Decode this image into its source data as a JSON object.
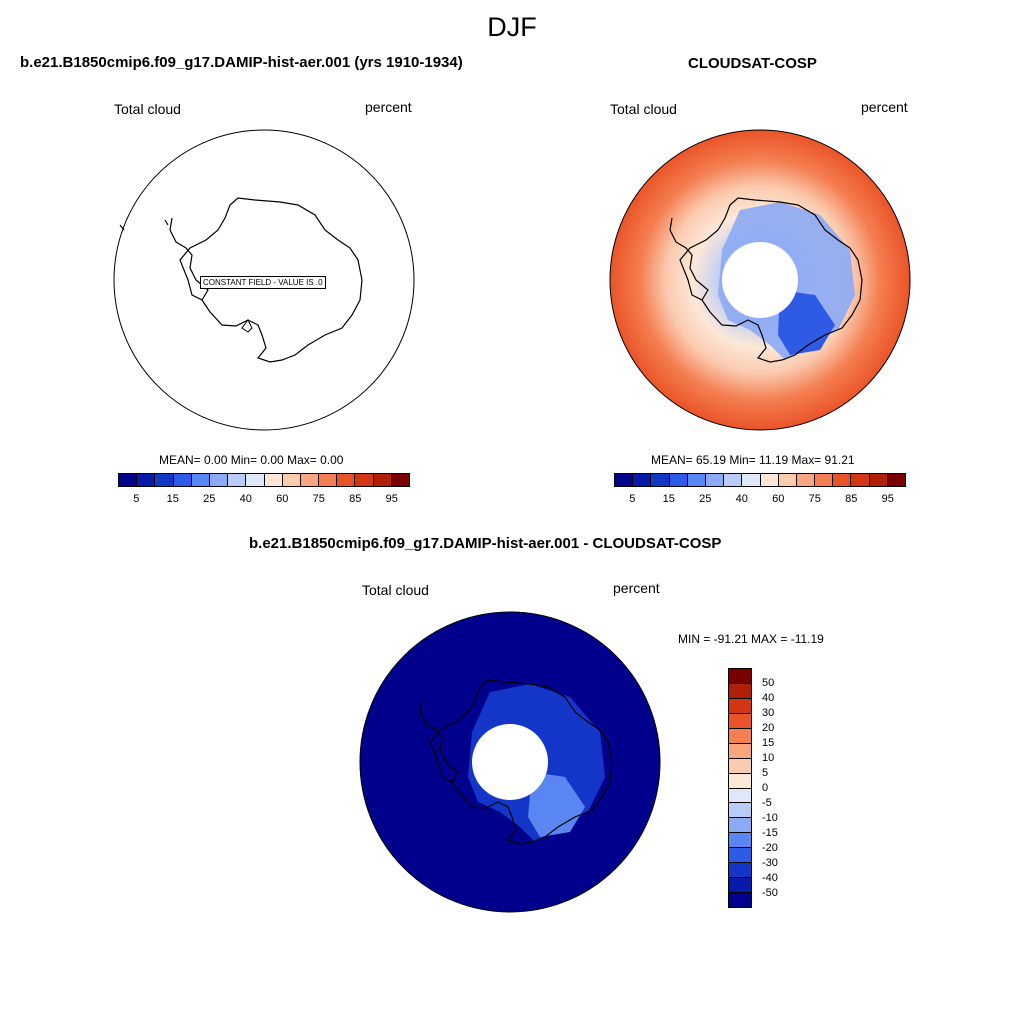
{
  "title": "DJF",
  "panels": [
    {
      "title": "b.e21.B1850cmip6.f09_g17.DAMIP-hist-aer.001 (yrs 1910-1934)",
      "left_label": "Total cloud",
      "right_label": "percent",
      "notice": "CONSTANT FIELD - VALUE IS .0",
      "stats": "MEAN=   0.00  Min=   0.00  Max=   0.00"
    },
    {
      "title": "CLOUDSAT-COSP",
      "left_label": "Total cloud",
      "right_label": "percent",
      "stats": "MEAN=  65.19  Min=  11.19  Max=  91.21"
    },
    {
      "title": "b.e21.B1850cmip6.f09_g17.DAMIP-hist-aer.001 - CLOUDSAT-COSP",
      "left_label": "Total cloud",
      "right_label": "percent",
      "minmax": "MIN = -91.21  MAX = -11.19"
    }
  ],
  "chart_data": [
    {
      "type": "heatmap",
      "projection": "south-polar-stereographic",
      "title": "b.e21.B1850cmip6.f09_g17.DAMIP-hist-aer.001 (yrs 1910-1934)",
      "variable": "Total cloud",
      "units": "percent",
      "mean": 0.0,
      "min": 0.0,
      "max": 0.0,
      "colorbar_levels": [
        5,
        10,
        15,
        20,
        25,
        30,
        40,
        50,
        60,
        65,
        75,
        80,
        85,
        90,
        95
      ],
      "colorbar_tick_labels": [
        "5",
        "15",
        "25",
        "40",
        "60",
        "75",
        "85",
        "95"
      ]
    },
    {
      "type": "heatmap",
      "projection": "south-polar-stereographic",
      "title": "CLOUDSAT-COSP",
      "variable": "Total cloud",
      "units": "percent",
      "mean": 65.19,
      "min": 11.19,
      "max": 91.21,
      "colorbar_levels": [
        5,
        10,
        15,
        20,
        25,
        30,
        40,
        50,
        60,
        65,
        75,
        80,
        85,
        90,
        95
      ],
      "colorbar_tick_labels": [
        "5",
        "15",
        "25",
        "40",
        "60",
        "75",
        "85",
        "95"
      ]
    },
    {
      "type": "heatmap",
      "projection": "south-polar-stereographic",
      "title": "b.e21.B1850cmip6.f09_g17.DAMIP-hist-aer.001 - CLOUDSAT-COSP",
      "variable": "Total cloud",
      "units": "percent",
      "min": -91.21,
      "max": -11.19,
      "colorbar_levels": [
        "50",
        "40",
        "30",
        "20",
        "15",
        "10",
        "5",
        "0",
        "-5",
        "-10",
        "-15",
        "-20",
        "-30",
        "-40",
        "-50"
      ]
    }
  ],
  "colors": {
    "diverging": [
      "#00008c",
      "#0a1aa8",
      "#1436c8",
      "#2e5ae6",
      "#5a86f2",
      "#8caaf4",
      "#b9ccf7",
      "#dfe8fb",
      "#fde8d8",
      "#fbcbb0",
      "#f8a67e",
      "#f47f52",
      "#ea5428",
      "#d23612",
      "#b02008",
      "#7a0000"
    ]
  }
}
